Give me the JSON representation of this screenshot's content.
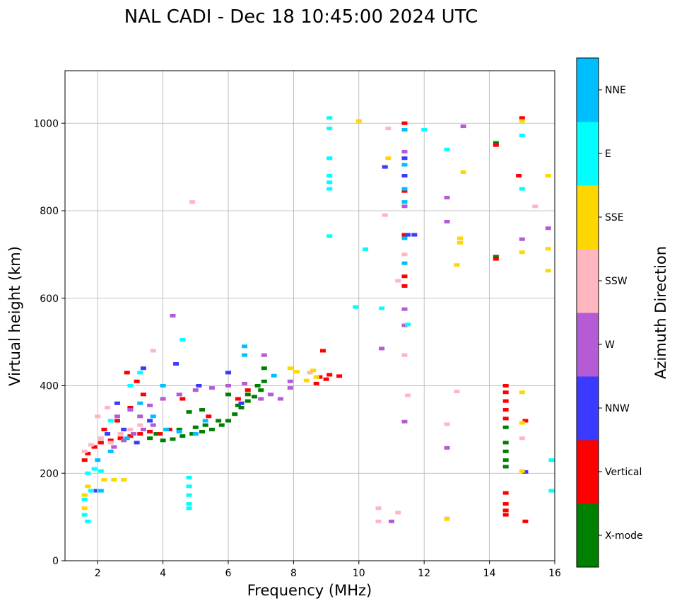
{
  "chart_data": {
    "type": "scatter",
    "title": "NAL CADI - Dec 18 10:45:00 2024 UTC",
    "xlabel": "Frequency (MHz)",
    "ylabel": "Virtual height (km)",
    "xlim": [
      1,
      16
    ],
    "ylim": [
      0,
      1120
    ],
    "xticks": [
      2,
      4,
      6,
      8,
      10,
      12,
      14,
      16
    ],
    "yticks": [
      0,
      200,
      400,
      600,
      800,
      1000
    ],
    "grid": true,
    "colorbar": {
      "label": "Azimuth Direction",
      "categories": [
        {
          "name": "X-mode",
          "color": "#008000"
        },
        {
          "name": "Vertical",
          "color": "#ff0000"
        },
        {
          "name": "NNW",
          "color": "#3b3bff"
        },
        {
          "name": "W",
          "color": "#b55bd6"
        },
        {
          "name": "SSW",
          "color": "#ffb6c1"
        },
        {
          "name": "SSE",
          "color": "#ffd700"
        },
        {
          "name": "E",
          "color": "#00ffff"
        },
        {
          "name": "NNE",
          "color": "#00bfff"
        }
      ]
    },
    "series": [
      {
        "name": "X-mode",
        "points": [
          [
            4.0,
            275
          ],
          [
            4.3,
            278
          ],
          [
            4.6,
            285
          ],
          [
            4.9,
            290
          ],
          [
            5.2,
            295
          ],
          [
            5.5,
            300
          ],
          [
            5.8,
            310
          ],
          [
            6.0,
            320
          ],
          [
            6.2,
            335
          ],
          [
            6.4,
            350
          ],
          [
            6.6,
            365
          ],
          [
            6.8,
            375
          ],
          [
            7.0,
            390
          ],
          [
            7.1,
            410
          ],
          [
            3.6,
            280
          ],
          [
            3.8,
            290
          ],
          [
            4.5,
            300
          ],
          [
            5.0,
            305
          ],
          [
            5.3,
            310
          ],
          [
            5.7,
            320
          ],
          [
            6.3,
            355
          ],
          [
            6.6,
            380
          ],
          [
            6.9,
            400
          ],
          [
            7.1,
            440
          ],
          [
            14.2,
            955
          ],
          [
            14.2,
            695
          ],
          [
            14.5,
            305
          ],
          [
            14.5,
            270
          ],
          [
            14.5,
            250
          ],
          [
            14.5,
            230
          ],
          [
            14.5,
            215
          ],
          [
            5.2,
            345
          ],
          [
            6.0,
            380
          ],
          [
            4.8,
            340
          ]
        ]
      },
      {
        "name": "Vertical",
        "points": [
          [
            1.6,
            230
          ],
          [
            1.7,
            245
          ],
          [
            1.9,
            260
          ],
          [
            2.1,
            270
          ],
          [
            2.4,
            275
          ],
          [
            2.7,
            280
          ],
          [
            3.0,
            285
          ],
          [
            3.3,
            290
          ],
          [
            3.6,
            295
          ],
          [
            3.9,
            290
          ],
          [
            4.2,
            300
          ],
          [
            2.2,
            300
          ],
          [
            2.6,
            320
          ],
          [
            3.0,
            350
          ],
          [
            3.4,
            380
          ],
          [
            2.9,
            430
          ],
          [
            3.2,
            410
          ],
          [
            6.3,
            370
          ],
          [
            6.6,
            390
          ],
          [
            8.7,
            405
          ],
          [
            8.8,
            420
          ],
          [
            9.0,
            415
          ],
          [
            9.1,
            425
          ],
          [
            8.9,
            480
          ],
          [
            9.4,
            422
          ],
          [
            14.2,
            950
          ],
          [
            14.2,
            690
          ],
          [
            14.5,
            400
          ],
          [
            14.5,
            385
          ],
          [
            14.5,
            365
          ],
          [
            14.5,
            345
          ],
          [
            14.5,
            325
          ],
          [
            14.5,
            155
          ],
          [
            14.5,
            130
          ],
          [
            14.5,
            115
          ],
          [
            14.5,
            105
          ],
          [
            14.9,
            880
          ],
          [
            15.0,
            1012
          ],
          [
            15.1,
            320
          ],
          [
            15.1,
            90
          ],
          [
            11.4,
            1000
          ],
          [
            11.4,
            845
          ],
          [
            11.4,
            745
          ],
          [
            11.4,
            650
          ],
          [
            11.4,
            628
          ],
          [
            5.4,
            330
          ],
          [
            4.6,
            370
          ]
        ]
      },
      {
        "name": "NNW",
        "points": [
          [
            1.9,
            160
          ],
          [
            2.3,
            290
          ],
          [
            2.8,
            300
          ],
          [
            3.2,
            270
          ],
          [
            3.6,
            320
          ],
          [
            4.4,
            450
          ],
          [
            5.1,
            400
          ],
          [
            6.4,
            360
          ],
          [
            11.4,
            920
          ],
          [
            11.4,
            880
          ],
          [
            11.5,
            745
          ],
          [
            11.7,
            745
          ],
          [
            15.1,
            203
          ],
          [
            10.8,
            900
          ],
          [
            6.0,
            430
          ],
          [
            2.6,
            360
          ],
          [
            3.4,
            440
          ]
        ]
      },
      {
        "name": "W",
        "points": [
          [
            2.5,
            260
          ],
          [
            2.8,
            275
          ],
          [
            3.1,
            290
          ],
          [
            3.4,
            300
          ],
          [
            3.7,
            310
          ],
          [
            2.6,
            330
          ],
          [
            3.0,
            345
          ],
          [
            3.3,
            330
          ],
          [
            3.6,
            355
          ],
          [
            4.0,
            370
          ],
          [
            4.5,
            380
          ],
          [
            5.0,
            390
          ],
          [
            5.5,
            395
          ],
          [
            6.0,
            400
          ],
          [
            6.5,
            405
          ],
          [
            7.0,
            370
          ],
          [
            7.3,
            380
          ],
          [
            7.6,
            370
          ],
          [
            7.9,
            395
          ],
          [
            7.9,
            410
          ],
          [
            7.1,
            470
          ],
          [
            11.4,
            575
          ],
          [
            11.4,
            538
          ],
          [
            12.7,
            830
          ],
          [
            12.7,
            258
          ],
          [
            12.7,
            775
          ],
          [
            13.2,
            993
          ],
          [
            15.0,
            735
          ],
          [
            15.8,
            760
          ],
          [
            10.7,
            485
          ],
          [
            11.4,
            810
          ],
          [
            11.4,
            935
          ],
          [
            11.4,
            318
          ],
          [
            11.0,
            90
          ],
          [
            4.3,
            560
          ]
        ]
      },
      {
        "name": "SSW",
        "points": [
          [
            1.6,
            250
          ],
          [
            1.8,
            265
          ],
          [
            2.1,
            280
          ],
          [
            2.4,
            270
          ],
          [
            2.7,
            290
          ],
          [
            3.0,
            300
          ],
          [
            3.3,
            310
          ],
          [
            2.0,
            330
          ],
          [
            2.3,
            350
          ],
          [
            3.7,
            480
          ],
          [
            4.9,
            820
          ],
          [
            8.5,
            430
          ],
          [
            10.8,
            790
          ],
          [
            11.2,
            640
          ],
          [
            11.4,
            700
          ],
          [
            11.4,
            470
          ],
          [
            11.5,
            378
          ],
          [
            10.6,
            120
          ],
          [
            10.6,
            90
          ],
          [
            11.2,
            110
          ],
          [
            12.7,
            312
          ],
          [
            13.0,
            387
          ],
          [
            12.7,
            97
          ],
          [
            15.0,
            280
          ],
          [
            15.4,
            810
          ],
          [
            10.9,
            988
          ]
        ]
      },
      {
        "name": "SSE",
        "points": [
          [
            1.6,
            150
          ],
          [
            1.6,
            120
          ],
          [
            1.7,
            170
          ],
          [
            2.2,
            185
          ],
          [
            2.5,
            185
          ],
          [
            2.8,
            185
          ],
          [
            8.4,
            412
          ],
          [
            8.6,
            435
          ],
          [
            8.7,
            420
          ],
          [
            8.1,
            432
          ],
          [
            7.9,
            440
          ],
          [
            10.0,
            1005
          ],
          [
            10.9,
            920
          ],
          [
            13.2,
            888
          ],
          [
            13.1,
            737
          ],
          [
            13.1,
            727
          ],
          [
            13.0,
            676
          ],
          [
            12.7,
            95
          ],
          [
            15.0,
            1005
          ],
          [
            15.0,
            705
          ],
          [
            15.0,
            385
          ],
          [
            15.0,
            315
          ],
          [
            15.8,
            880
          ],
          [
            15.8,
            713
          ],
          [
            15.8,
            663
          ],
          [
            15.0,
            205
          ]
        ]
      },
      {
        "name": "E",
        "points": [
          [
            1.6,
            140
          ],
          [
            1.6,
            105
          ],
          [
            1.7,
            90
          ],
          [
            1.8,
            160
          ],
          [
            1.7,
            200
          ],
          [
            1.9,
            210
          ],
          [
            2.1,
            205
          ],
          [
            2.4,
            320
          ],
          [
            3.0,
            400
          ],
          [
            4.8,
            190
          ],
          [
            4.8,
            170
          ],
          [
            4.8,
            150
          ],
          [
            4.8,
            130
          ],
          [
            4.8,
            120
          ],
          [
            9.1,
            1012
          ],
          [
            9.1,
            988
          ],
          [
            9.1,
            920
          ],
          [
            9.1,
            880
          ],
          [
            9.1,
            865
          ],
          [
            9.1,
            850
          ],
          [
            9.1,
            742
          ],
          [
            10.2,
            712
          ],
          [
            9.9,
            580
          ],
          [
            10.7,
            577
          ],
          [
            11.5,
            540
          ],
          [
            12.0,
            985
          ],
          [
            12.7,
            940
          ],
          [
            15.0,
            972
          ],
          [
            15.0,
            850
          ],
          [
            15.9,
            230
          ],
          [
            15.9,
            160
          ],
          [
            3.3,
            430
          ],
          [
            4.6,
            505
          ]
        ]
      },
      {
        "name": "NNE",
        "points": [
          [
            2.0,
            230
          ],
          [
            2.4,
            250
          ],
          [
            2.9,
            280
          ],
          [
            3.3,
            360
          ],
          [
            3.7,
            330
          ],
          [
            4.1,
            300
          ],
          [
            4.5,
            295
          ],
          [
            5.0,
            290
          ],
          [
            5.3,
            320
          ],
          [
            6.5,
            470
          ],
          [
            6.5,
            490
          ],
          [
            7.4,
            423
          ],
          [
            11.4,
            905
          ],
          [
            11.4,
            820
          ],
          [
            11.4,
            737
          ],
          [
            11.4,
            680
          ],
          [
            11.4,
            850
          ],
          [
            11.4,
            985
          ],
          [
            2.1,
            160
          ],
          [
            4.0,
            400
          ]
        ]
      }
    ]
  }
}
